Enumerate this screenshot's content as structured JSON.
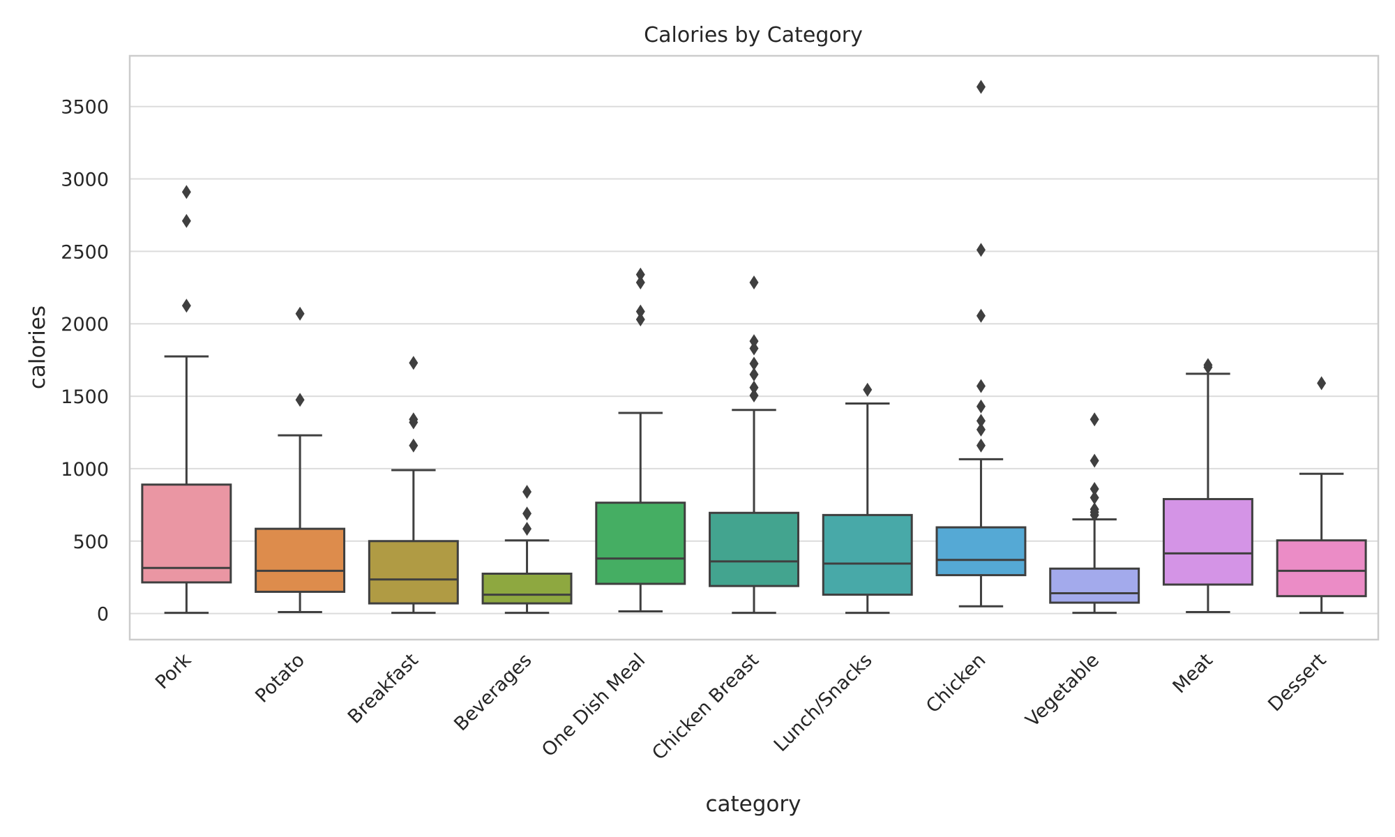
{
  "chart_data": {
    "type": "box",
    "title": "Calories by Category",
    "xlabel": "category",
    "ylabel": "calories",
    "ylim": [
      -180,
      3850
    ],
    "yticks": [
      0,
      500,
      1000,
      1500,
      2000,
      2500,
      3000,
      3500
    ],
    "grid": true,
    "legend": "none",
    "categories": [
      {
        "name": "Pork",
        "color": "#ea96a3",
        "whisker_low": 5,
        "q1": 215,
        "median": 315,
        "q3": 890,
        "whisker_high": 1775,
        "outliers": [
          2125,
          2710,
          2910
        ]
      },
      {
        "name": "Potato",
        "color": "#dd8c4c",
        "whisker_low": 10,
        "q1": 150,
        "median": 295,
        "q3": 585,
        "whisker_high": 1230,
        "outliers": [
          1475,
          2070
        ]
      },
      {
        "name": "Breakfast",
        "color": "#b09b44",
        "whisker_low": 5,
        "q1": 70,
        "median": 235,
        "q3": 500,
        "whisker_high": 990,
        "outliers": [
          1160,
          1320,
          1340,
          1730
        ]
      },
      {
        "name": "Beverages",
        "color": "#8ea840",
        "whisker_low": 5,
        "q1": 70,
        "median": 130,
        "q3": 275,
        "whisker_high": 505,
        "outliers": [
          585,
          690,
          840
        ]
      },
      {
        "name": "One Dish Meal",
        "color": "#45ae63",
        "whisker_low": 15,
        "q1": 205,
        "median": 380,
        "q3": 765,
        "whisker_high": 1385,
        "outliers": [
          2030,
          2085,
          2285,
          2340
        ]
      },
      {
        "name": "Chicken Breast",
        "color": "#43a48f",
        "whisker_low": 5,
        "q1": 190,
        "median": 360,
        "q3": 695,
        "whisker_high": 1405,
        "outliers": [
          1505,
          1560,
          1650,
          1725,
          1830,
          1880,
          2285
        ]
      },
      {
        "name": "Lunch/Snacks",
        "color": "#48a9a8",
        "whisker_low": 5,
        "q1": 130,
        "median": 345,
        "q3": 680,
        "whisker_high": 1450,
        "outliers": [
          1545
        ]
      },
      {
        "name": "Chicken",
        "color": "#55a9d5",
        "whisker_low": 50,
        "q1": 265,
        "median": 370,
        "q3": 595,
        "whisker_high": 1065,
        "outliers": [
          1160,
          1270,
          1330,
          1430,
          1570,
          2055,
          2510,
          3635
        ]
      },
      {
        "name": "Vegetable",
        "color": "#a3aaec",
        "whisker_low": 5,
        "q1": 75,
        "median": 140,
        "q3": 310,
        "whisker_high": 650,
        "outliers": [
          680,
          700,
          720,
          800,
          860,
          1055,
          1340
        ]
      },
      {
        "name": "Meat",
        "color": "#d494e6",
        "whisker_low": 10,
        "q1": 200,
        "median": 415,
        "q3": 790,
        "whisker_high": 1655,
        "outliers": [
          1700,
          1715
        ]
      },
      {
        "name": "Dessert",
        "color": "#eb8cc6",
        "whisker_low": 5,
        "q1": 120,
        "median": 295,
        "q3": 505,
        "whisker_high": 965,
        "outliers": [
          1590
        ]
      }
    ]
  }
}
